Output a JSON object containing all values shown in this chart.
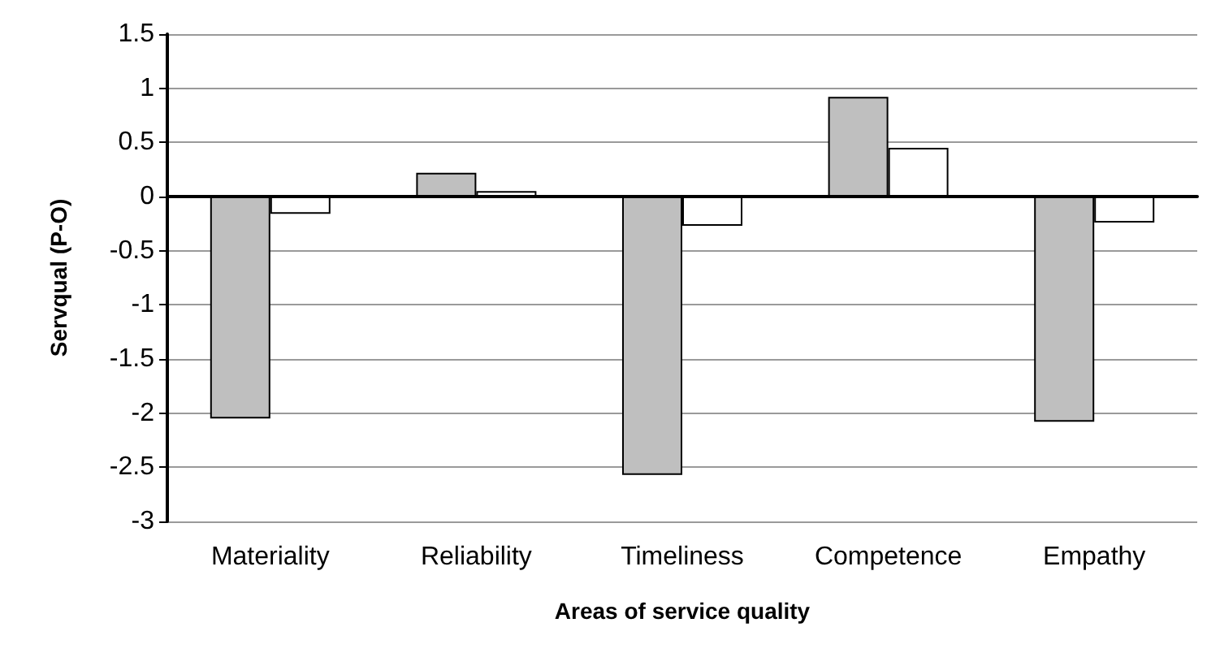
{
  "chart_data": {
    "type": "bar",
    "xlabel": "Areas of service quality",
    "ylabel": "Servqual (P-O)",
    "categories": [
      "Materiality",
      "Reliability",
      "Timeliness",
      "Competence",
      "Empathy"
    ],
    "series": [
      {
        "color": "#bfbfbf",
        "values": [
          -2.05,
          0.22,
          -2.57,
          0.92,
          -2.08
        ]
      },
      {
        "color": "#ffffff",
        "values": [
          -0.16,
          0.05,
          -0.27,
          0.45,
          -0.24
        ]
      }
    ],
    "ylim": [
      -3,
      1.5
    ],
    "yticks": [
      -3,
      -2.5,
      -2,
      -1.5,
      -1,
      -0.5,
      0,
      0.5,
      1,
      1.5
    ],
    "grid": "y"
  }
}
